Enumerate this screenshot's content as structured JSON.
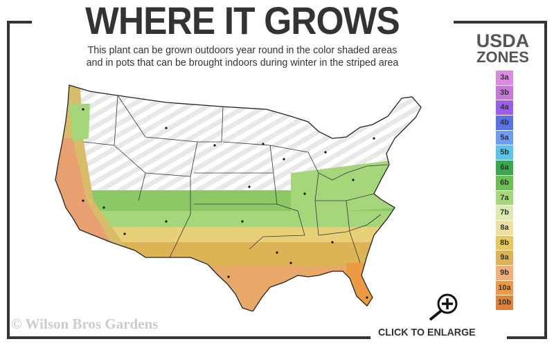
{
  "header": {
    "title": "WHERE IT GROWS",
    "subtitle_line1": "This plant can be grown outdoors year round in the color shaded areas",
    "subtitle_line2": "and in pots that can be brought indoors during winter in the striped area"
  },
  "legend": {
    "title_line1": "USDA",
    "title_line2": "ZONES",
    "zones": [
      {
        "label": "3a",
        "color": "#d98be0"
      },
      {
        "label": "3b",
        "color": "#c57ad8"
      },
      {
        "label": "4a",
        "color": "#9a5ee8"
      },
      {
        "label": "4b",
        "color": "#5a72e6"
      },
      {
        "label": "5a",
        "color": "#6e9cf0"
      },
      {
        "label": "5b",
        "color": "#5cc4e4"
      },
      {
        "label": "6a",
        "color": "#3aa84e"
      },
      {
        "label": "6b",
        "color": "#6cbf55"
      },
      {
        "label": "7a",
        "color": "#a6d67a"
      },
      {
        "label": "7b",
        "color": "#dcebb0"
      },
      {
        "label": "8a",
        "color": "#ede0a0"
      },
      {
        "label": "8b",
        "color": "#e8c85a"
      },
      {
        "label": "9a",
        "color": "#dcb455"
      },
      {
        "label": "9b",
        "color": "#f0b07c"
      },
      {
        "label": "10a",
        "color": "#ec9a44"
      },
      {
        "label": "10b",
        "color": "#e0823a"
      }
    ]
  },
  "footer": {
    "copyright": "© Wilson Bros Gardens",
    "enlarge_label": "CLICK TO ENLARGE"
  }
}
